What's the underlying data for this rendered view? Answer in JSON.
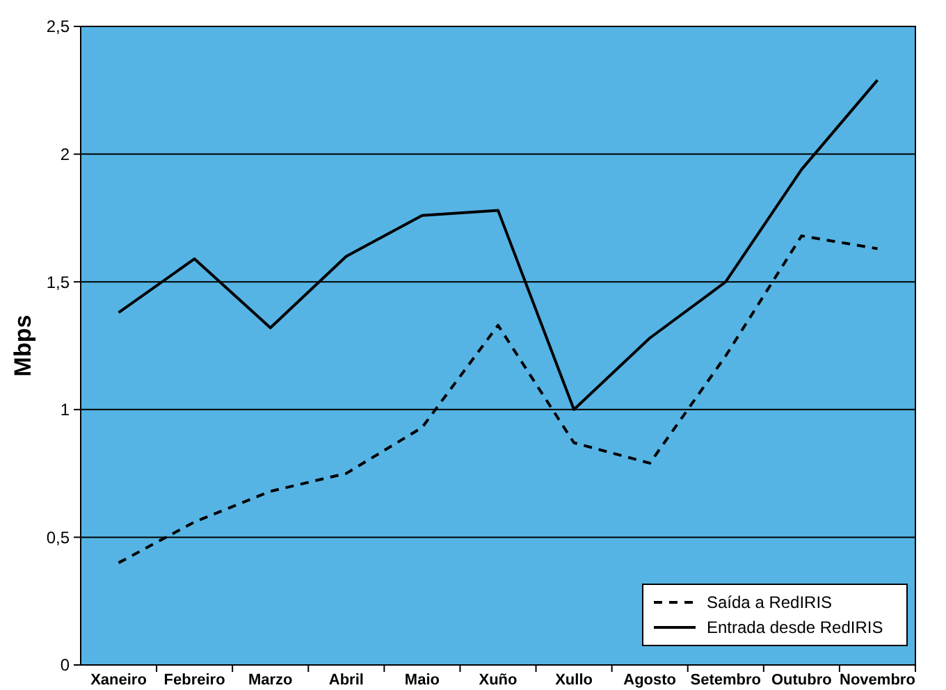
{
  "chart_data": {
    "type": "line",
    "ylabel": "Mbps",
    "categories": [
      "Xaneiro",
      "Febreiro",
      "Marzo",
      "Abril",
      "Maio",
      "Xuño",
      "Xullo",
      "Agosto",
      "Setembro",
      "Outubro",
      "Novembro"
    ],
    "series": [
      {
        "name": "Saída a RedIRIS",
        "color": "#000000",
        "line_style": "dashed",
        "values": [
          0.4,
          0.56,
          0.68,
          0.75,
          0.93,
          1.33,
          0.87,
          0.79,
          1.21,
          1.68,
          1.63
        ]
      },
      {
        "name": "Entrada desde RedIRIS",
        "color": "#000000",
        "line_style": "solid",
        "values": [
          1.38,
          1.59,
          1.32,
          1.6,
          1.76,
          1.78,
          1.0,
          1.28,
          1.5,
          1.94,
          2.29
        ]
      }
    ],
    "ylim": [
      0,
      2.5
    ],
    "yticks": [
      0,
      {
        "value": 0.5,
        "label": "0,5"
      },
      1,
      {
        "value": 1.5,
        "label": "1,5"
      },
      2,
      {
        "value": 2.5,
        "label": "2,5"
      }
    ],
    "grid": "y",
    "legend": "bottom right"
  }
}
